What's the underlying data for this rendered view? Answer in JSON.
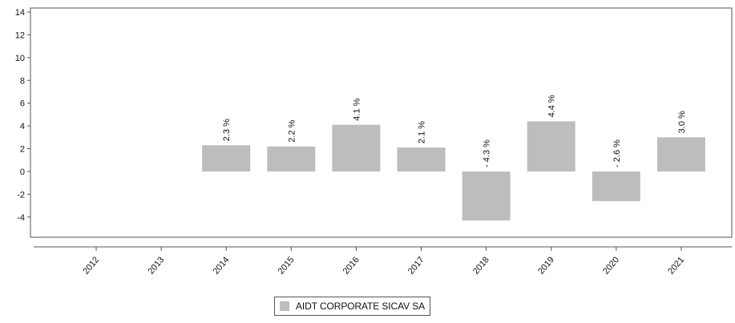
{
  "chart_data": {
    "type": "bar",
    "categories": [
      "2012",
      "2013",
      "2014",
      "2015",
      "2016",
      "2017",
      "2018",
      "2019",
      "2020",
      "2021"
    ],
    "series": [
      {
        "name": "AIDT CORPORATE SICAV SA",
        "values": [
          null,
          null,
          2.3,
          2.2,
          4.1,
          2.1,
          -4.3,
          4.4,
          -2.6,
          3.0
        ],
        "data_labels": [
          "",
          "",
          "2.3 %",
          "2.2 %",
          "4.1 %",
          "2.1 %",
          "- 4.3 %",
          "4.4 %",
          "- 2.6 %",
          "3.0 %"
        ]
      }
    ],
    "ylim": [
      -5,
      14
    ],
    "yticks": [
      -4,
      -2,
      0,
      2,
      4,
      6,
      8,
      10,
      12,
      14
    ],
    "ytick_labels": [
      "-4",
      "-2",
      "0",
      "2",
      "4",
      "6",
      "8",
      "10",
      "12",
      "14"
    ],
    "title": "",
    "xlabel": "",
    "ylabel": "",
    "grid": false,
    "legend_position": "bottom-center",
    "colors": {
      "bar": "#bdbdbd",
      "axis": "#555555",
      "text": "#111111"
    }
  }
}
